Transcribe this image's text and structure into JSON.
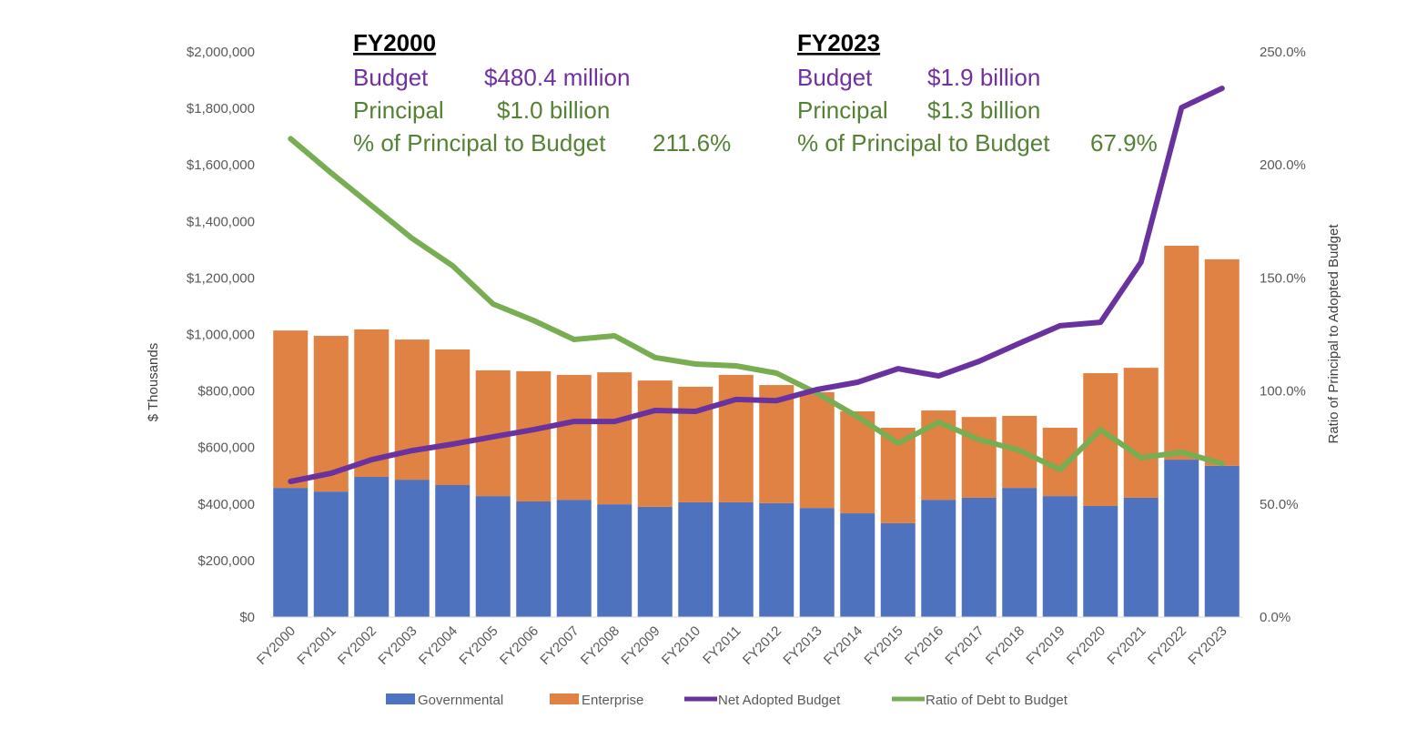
{
  "chart_data": {
    "type": "bar",
    "stacked": true,
    "categories": [
      "FY2000",
      "FY2001",
      "FY2002",
      "FY2003",
      "FY2004",
      "FY2005",
      "FY2006",
      "FY2007",
      "FY2008",
      "FY2009",
      "FY2010",
      "FY2011",
      "FY2012",
      "FY2013",
      "FY2014",
      "FY2015",
      "FY2016",
      "FY2017",
      "FY2018",
      "FY2019",
      "FY2020",
      "FY2021",
      "FY2022",
      "FY2023"
    ],
    "series": [
      {
        "name": "Governmental",
        "type": "bar",
        "axis": "left",
        "color": "#4f72be",
        "values": [
          457,
          444,
          496,
          486,
          467,
          428,
          409,
          415,
          399,
          390,
          406,
          406,
          403,
          386,
          367,
          332,
          415,
          422,
          457,
          428,
          393,
          422,
          557,
          535
        ]
      },
      {
        "name": "Enterprise",
        "type": "bar",
        "axis": "left",
        "color": "#df8244",
        "values": [
          557,
          551,
          522,
          496,
          480,
          445,
          461,
          442,
          467,
          447,
          409,
          451,
          418,
          410,
          361,
          338,
          316,
          286,
          255,
          242,
          470,
          460,
          757,
          731
        ]
      },
      {
        "name": "Net Adopted Budget",
        "type": "line",
        "axis": "left",
        "color": "#6a329f",
        "values": [
          480,
          509,
          557,
          589,
          612,
          638,
          663,
          692,
          692,
          731,
          728,
          770,
          766,
          805,
          831,
          879,
          853,
          905,
          969,
          1031,
          1043,
          1256,
          1803,
          1871
        ]
      },
      {
        "name": "Ratio of Debt to Budget",
        "type": "line",
        "axis": "right",
        "color": "#78ad52",
        "values": [
          211.6,
          196.5,
          182.0,
          167.5,
          155.4,
          138.5,
          131.2,
          122.8,
          124.4,
          114.8,
          111.9,
          111.1,
          107.9,
          99.0,
          88.6,
          76.9,
          86.2,
          78.5,
          73.7,
          65.2,
          82.9,
          70.5,
          72.9,
          67.9
        ]
      }
    ],
    "value_units_note_left": "values in $ thousands ×1000",
    "ylabel": "$ Thousands",
    "ylabel_right": "Ratio of Principal to Adopted Budget",
    "ylim": [
      0,
      2000000
    ],
    "ylim_right": [
      0,
      250
    ],
    "yticks": [
      "$0",
      "$200,000",
      "$400,000",
      "$600,000",
      "$800,000",
      "$1,000,000",
      "$1,200,000",
      "$1,400,000",
      "$1,600,000",
      "$1,800,000",
      "$2,000,000"
    ],
    "yticks_right": [
      "0.0%",
      "50.0%",
      "100.0%",
      "150.0%",
      "200.0%",
      "250.0%"
    ],
    "grid": false,
    "legend": "bottom",
    "annotations": [
      {
        "heading": "FY2000",
        "budget_label": "Budget",
        "budget_value": "$480.4 million",
        "principal_label": "Principal",
        "principal_value": "$1.0 billion",
        "pct_label": "% of Principal to Budget",
        "pct_value": "211.6%"
      },
      {
        "heading": "FY2023",
        "budget_label": "Budget",
        "budget_value": "$1.9 billion",
        "principal_label": "Principal",
        "principal_value": "$1.3 billion",
        "pct_label": "% of Principal to Budget",
        "pct_value": "67.9%"
      }
    ],
    "annotation_colors": {
      "heading": "#000000",
      "budget": "#7030a0",
      "principal": "#548235"
    }
  }
}
